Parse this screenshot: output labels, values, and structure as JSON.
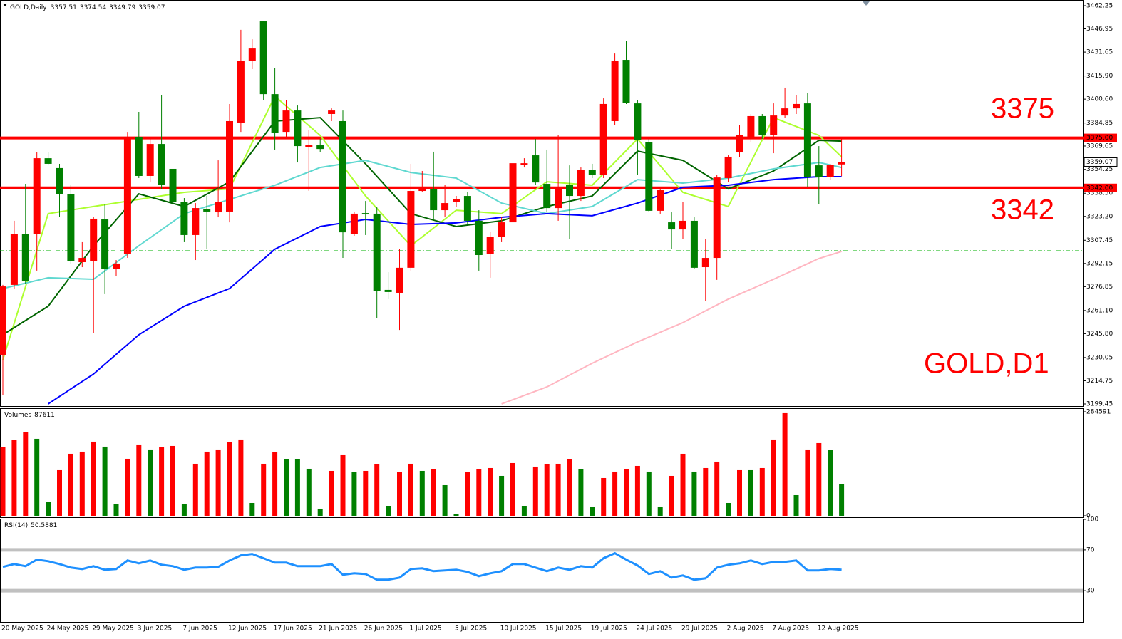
{
  "chart_data": [
    {
      "type": "candlestick",
      "title": "GOLD,Daily",
      "categories": [
        "20 May 2025",
        null,
        null,
        null,
        "24 May 2025",
        null,
        null,
        null,
        "29 May 2025",
        null,
        null,
        null,
        "3 Jun 2025",
        null,
        null,
        null,
        "7 Jun 2025",
        null,
        null,
        null,
        "12 Jun 2025",
        null,
        null,
        null,
        "17 Jun 2025",
        null,
        null,
        null,
        "21 Jun 2025",
        null,
        null,
        null,
        "26 Jun 2025",
        null,
        null,
        null,
        "1 Jul 2025",
        null,
        null,
        null,
        "5 Jul 2025",
        null,
        null,
        null,
        "10 Jul 2025",
        null,
        null,
        null,
        "15 Jul 2025",
        null,
        null,
        null,
        "19 Jul 2025",
        null,
        null,
        null,
        "24 Jul 2025",
        null,
        null,
        null,
        "29 Jul 2025",
        null,
        null,
        null,
        "2 Aug 2025",
        null,
        null,
        null,
        "7 Aug 2025",
        null,
        null,
        null,
        "12 Aug 2025",
        null,
        null
      ],
      "open": [
        3231.9,
        3278.0,
        3311.8,
        3311.8,
        3361.6,
        3355.1,
        3338.1,
        3293.0,
        3293.9,
        3321.2,
        3288.3,
        3298.2,
        3375.3,
        3349.9,
        3371.0,
        3354.6,
        3332.5,
        3310.9,
        3327.8,
        3325.9,
        3326.4,
        3385.1,
        3425.6,
        3451.9,
        3403.9,
        3379.0,
        3393.1,
        3368.7,
        3370.1,
        3390.8,
        3386.1,
        3311.8,
        3325.4,
        3325.0,
        3274.7,
        3272.8,
        3289.3,
        3340.0,
        3341.4,
        3327.3,
        3332.5,
        3336.7,
        3320.3,
        3298.2,
        3309.5,
        3319.3,
        3357.4,
        3363.5,
        3344.7,
        3328.7,
        3343.8,
        3336.7,
        3354.1,
        3350.4,
        3386.1,
        3426.5,
        3397.8,
        3372.4,
        3326.9,
        3319.3,
        3314.6,
        3320.3,
        3289.7,
        3295.8,
        3348.5,
        3365.4,
        3375.7,
        3389.4,
        3376.7,
        3389.8,
        3394.5,
        3397.8,
        3356.9,
        3349.4,
        3357.51
      ],
      "high": [
        3278.0,
        3320.3,
        3344.7,
        3365.9,
        3365.9,
        3357.9,
        3343.8,
        3306.2,
        3322.6,
        3331.1,
        3294.4,
        3379.0,
        3392.2,
        3375.3,
        3403.5,
        3364.9,
        3335.3,
        3332.0,
        3336.7,
        3360.2,
        3397.4,
        3446.3,
        3440.1,
        3451.9,
        3421.3,
        3400.2,
        3396.4,
        3380.0,
        3374.3,
        3394.5,
        3393.1,
        3326.4,
        3333.4,
        3329.7,
        3286.4,
        3301.5,
        3357.9,
        3353.2,
        3365.9,
        3343.8,
        3336.7,
        3339.1,
        3327.3,
        3313.2,
        3322.6,
        3368.2,
        3361.6,
        3374.3,
        3367.3,
        3376.7,
        3356.9,
        3355.5,
        3357.9,
        3401.1,
        3430.7,
        3439.2,
        3400.2,
        3374.3,
        3341.4,
        3325.9,
        3332.9,
        3322.6,
        3308.5,
        3350.8,
        3363.5,
        3383.7,
        3390.8,
        3390.8,
        3397.8,
        3408.2,
        3403.5,
        3404.9,
        3369.6,
        3357.9,
        3374.54
      ],
      "low": [
        3205.1,
        3275.6,
        3278.9,
        3287.4,
        3356.9,
        3322.6,
        3292.1,
        3289.7,
        3246.0,
        3271.9,
        3283.6,
        3295.8,
        3348.5,
        3346.1,
        3341.4,
        3329.7,
        3306.2,
        3294.4,
        3301.5,
        3322.6,
        3319.3,
        3379.0,
        3420.4,
        3400.2,
        3367.3,
        3374.3,
        3358.8,
        3340.0,
        3365.4,
        3386.1,
        3295.8,
        3310.4,
        3310.9,
        3255.9,
        3268.6,
        3248.3,
        3287.4,
        3339.1,
        3320.3,
        3322.6,
        3329.7,
        3317.9,
        3287.4,
        3282.7,
        3306.2,
        3316.5,
        3355.5,
        3343.8,
        3325.9,
        3320.3,
        3308.5,
        3333.4,
        3348.5,
        3348.5,
        3383.7,
        3397.4,
        3350.8,
        3325.9,
        3325.0,
        3301.5,
        3308.5,
        3288.3,
        3267.6,
        3281.3,
        3346.1,
        3362.6,
        3372.0,
        3374.3,
        3364.9,
        3388.4,
        3390.8,
        3342.8,
        3331.1,
        3347.5,
        3349.79
      ],
      "close": [
        3277.0,
        3311.8,
        3280.3,
        3361.6,
        3357.9,
        3338.1,
        3293.9,
        3295.8,
        3321.7,
        3288.3,
        3292.1,
        3375.3,
        3349.9,
        3371.0,
        3343.8,
        3332.5,
        3310.9,
        3328.7,
        3326.4,
        3332.5,
        3386.1,
        3425.6,
        3434.0,
        3403.9,
        3378.1,
        3393.1,
        3369.6,
        3370.1,
        3367.7,
        3393.1,
        3312.7,
        3325.0,
        3324.5,
        3274.2,
        3273.3,
        3289.3,
        3340.0,
        3342.8,
        3327.3,
        3332.0,
        3334.8,
        3320.3,
        3297.7,
        3309.5,
        3319.3,
        3358.3,
        3358.3,
        3345.6,
        3328.7,
        3342.8,
        3336.7,
        3354.1,
        3350.8,
        3397.4,
        3426.0,
        3398.3,
        3373.4,
        3326.9,
        3340.5,
        3314.6,
        3320.3,
        3289.3,
        3295.8,
        3348.9,
        3362.6,
        3376.7,
        3389.4,
        3376.7,
        3389.8,
        3394.5,
        3397.4,
        3349.4,
        3349.4,
        3357.4,
        3359.07
      ],
      "up_color": "#ff0000",
      "down_color": "#008000",
      "overlays": [
        {
          "color": "#adff2f",
          "x": [
            0,
            4,
            8,
            12,
            16,
            20,
            24,
            28,
            32,
            36,
            40,
            44,
            48,
            52,
            56,
            60,
            64,
            68,
            72,
            74
          ],
          "values": [
            3228.6,
            3325.0,
            3329.7,
            3334.4,
            3339.1,
            3341.4,
            3402.5,
            3376.7,
            3336.7,
            3303.8,
            3327.3,
            3325.0,
            3346.1,
            3343.8,
            3374.3,
            3339.1,
            3329.7,
            3388.4,
            3376.7,
            3362.6
          ]
        },
        {
          "color": "#006400",
          "x": [
            0,
            4,
            8,
            12,
            16,
            20,
            24,
            28,
            32,
            36,
            40,
            44,
            48,
            52,
            56,
            60,
            64,
            68,
            72,
            74
          ],
          "values": [
            3245.1,
            3263.9,
            3303.8,
            3338.1,
            3329.7,
            3346.1,
            3386.1,
            3388.4,
            3357.9,
            3325.0,
            3316.5,
            3320.3,
            3329.7,
            3336.7,
            3366.3,
            3360.2,
            3341.4,
            3353.2,
            3373.4,
            3372.9
          ]
        },
        {
          "color": "#5fd8d0",
          "x": [
            0,
            4,
            8,
            12,
            16,
            20,
            24,
            28,
            32,
            36,
            40,
            44,
            48,
            52,
            56,
            60,
            64,
            68,
            72,
            74
          ],
          "values": [
            3275.6,
            3282.7,
            3281.7,
            3303.8,
            3325.0,
            3334.4,
            3343.8,
            3355.5,
            3360.2,
            3352.2,
            3348.5,
            3332.0,
            3325.0,
            3329.7,
            3347.5,
            3345.2,
            3348.5,
            3354.6,
            3358.8,
            3355.5
          ]
        },
        {
          "color": "#0000ff",
          "x": [
            4,
            8,
            12,
            16,
            20,
            24,
            28,
            32,
            36,
            40,
            44,
            48,
            52,
            56,
            60,
            64,
            68,
            72,
            74
          ],
          "values": [
            3199.5,
            3219.2,
            3245.1,
            3263.9,
            3275.6,
            3301.5,
            3316.5,
            3321.2,
            3317.9,
            3318.9,
            3322.6,
            3325.0,
            3323.6,
            3332.0,
            3342.4,
            3343.8,
            3347.5,
            3349.4,
            3349.4
          ]
        },
        {
          "color": "#ffb6c1",
          "x": [
            44,
            48,
            52,
            56,
            60,
            64,
            68,
            72,
            74
          ],
          "values": [
            3199.5,
            3210.7,
            3226.3,
            3240.4,
            3253.1,
            3268.6,
            3281.7,
            3295.4,
            3300.1
          ]
        }
      ],
      "levels": [
        {
          "value": 3375,
          "label": "3375.00",
          "color": "#ff0000"
        },
        {
          "value": 3342,
          "label": "3342.00",
          "color": "#ff0000"
        }
      ],
      "last_price": {
        "value": 3359.07,
        "label": "3359.07"
      },
      "order_level": 3300.5,
      "annotations": [
        "3375",
        "3342",
        "GOLD,D1"
      ],
      "ylim": [
        3199.45,
        3462.25
      ],
      "yticks": [
        3462.25,
        3446.95,
        3431.65,
        {
          "value": 3415.9,
          "label": "3415.90"
        },
        {
          "value": 3400.6,
          "label": "3400.60"
        },
        3384.85,
        3369.65,
        3354.25,
        {
          "value": 3338.5,
          "label": "3338.50"
        },
        {
          "value": 3323.2,
          "label": "3323.20"
        },
        3307.45,
        3292.15,
        3276.85,
        {
          "value": 3261.1,
          "label": "3261.10"
        },
        {
          "value": 3245.8,
          "label": "3245.80"
        },
        3230.05,
        3214.75,
        3199.45
      ]
    },
    {
      "type": "volume",
      "label": "Volumes",
      "values": [
        187200,
        206700,
        228150,
        210600,
        37050,
        124800,
        169650,
        175500,
        202800,
        189150,
        31200,
        156000,
        195000,
        181350,
        187200,
        191100,
        33150,
        142350,
        175500,
        181350,
        200850,
        208650,
        35100,
        142350,
        173550,
        154050,
        154050,
        128700,
        19500,
        122850,
        165750,
        118950,
        122850,
        140400,
        25350,
        118950,
        142350,
        122850,
        126750,
        83850,
        3900,
        118950,
        126750,
        130650,
        109200,
        144300,
        27300,
        134550,
        140400,
        142350,
        154050,
        126750,
        23400,
        103350,
        120900,
        126750,
        136500,
        120900,
        23400,
        109200,
        169650,
        120900,
        130650,
        148200,
        35100,
        124800,
        124800,
        130650,
        208650,
        280800,
        56550,
        181350,
        198900,
        179400,
        87611
      ],
      "up_color": "#ff0000",
      "down_color": "#008000",
      "ylim": [
        0,
        284591
      ],
      "yticks": [
        0,
        284591
      ]
    },
    {
      "type": "rsi",
      "label": "RSI(14)",
      "color": "#1e90ff",
      "values": [
        53.3,
        56.1,
        54.0,
        60.4,
        58.9,
        56.1,
        52.6,
        51.2,
        54.0,
        50.5,
        51.2,
        59.6,
        56.8,
        59.6,
        55.4,
        54.0,
        50.5,
        52.6,
        52.6,
        53.3,
        59.6,
        64.6,
        66.0,
        61.8,
        57.5,
        57.5,
        54.0,
        54.0,
        54.0,
        56.1,
        45.6,
        47.0,
        46.3,
        40.7,
        40.7,
        42.8,
        51.2,
        51.9,
        49.1,
        49.8,
        50.5,
        48.4,
        44.2,
        47.0,
        49.1,
        56.1,
        56.1,
        52.6,
        49.1,
        52.6,
        50.5,
        54.0,
        52.6,
        61.8,
        66.7,
        60.4,
        54.7,
        46.3,
        49.1,
        42.8,
        44.9,
        40.7,
        42.1,
        52.6,
        55.4,
        56.8,
        59.6,
        56.1,
        58.2,
        58.2,
        59.6,
        49.8,
        49.8,
        51.2,
        50.5881
      ],
      "levels": [
        30,
        70
      ],
      "level_color": "#c0c0c0",
      "ylim": [
        0,
        100
      ],
      "yticks": [
        30,
        70,
        100
      ]
    }
  ]
}
